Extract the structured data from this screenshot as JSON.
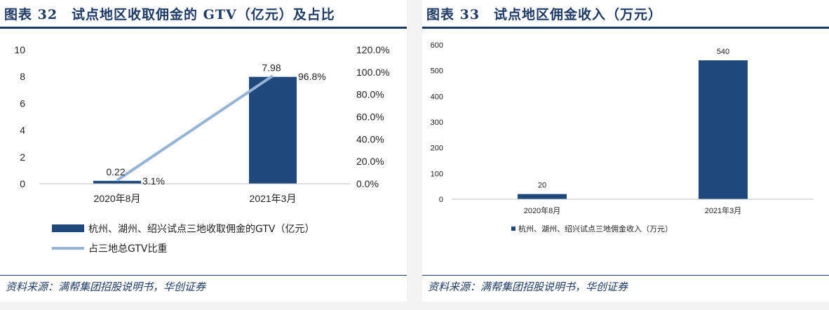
{
  "left": {
    "title": "图表 32　试点地区收取佣金的 GTV（亿元）及占比",
    "source": "资料来源：满帮集团招股说明书，华创证券",
    "legend": [
      "杭州、湖州、绍兴试点三地收取佣金的GTV（亿元）",
      "占三地总GTV比重"
    ],
    "colors": {
      "bar": "#1f497d",
      "line": "#95b3d7"
    }
  },
  "right": {
    "title": "图表 33　试点地区佣金收入（万元）",
    "source": "资料来源：满帮集团招股说明书，华创证券",
    "legend": [
      "杭州、湖州、绍兴试点三地佣金收入（万元）"
    ],
    "colors": {
      "bar": "#1f497d"
    }
  },
  "chart_data": [
    {
      "type": "bar",
      "categories": [
        "2020年8月",
        "2021年3月"
      ],
      "series": [
        {
          "name": "杭州、湖州、绍兴试点三地收取佣金的GTV（亿元）",
          "type": "bar",
          "values": [
            0.22,
            7.98
          ],
          "labels": [
            "0.22",
            "7.98"
          ],
          "axis": "left"
        },
        {
          "name": "占三地总GTV比重",
          "type": "line",
          "values": [
            3.1,
            96.8
          ],
          "labels": [
            "3.1%",
            "96.8%"
          ],
          "axis": "right"
        }
      ],
      "ylim": [
        0,
        10
      ],
      "yticks": [
        "0",
        "2",
        "4",
        "6",
        "8",
        "10"
      ],
      "y2lim": [
        0,
        120
      ],
      "y2ticks": [
        "0.0%",
        "20.0%",
        "40.0%",
        "60.0%",
        "80.0%",
        "100.0%",
        "120.0%"
      ],
      "legend": "bottom",
      "grid": false
    },
    {
      "type": "bar",
      "categories": [
        "2020年8月",
        "2021年3月"
      ],
      "series": [
        {
          "name": "杭州、湖州、绍兴试点三地佣金收入（万元）",
          "values": [
            20,
            540
          ],
          "labels": [
            "20",
            "540"
          ]
        }
      ],
      "ylim": [
        0,
        600
      ],
      "yticks": [
        "0",
        "100",
        "200",
        "300",
        "400",
        "500",
        "600"
      ],
      "legend": "bottom",
      "grid": false
    }
  ]
}
